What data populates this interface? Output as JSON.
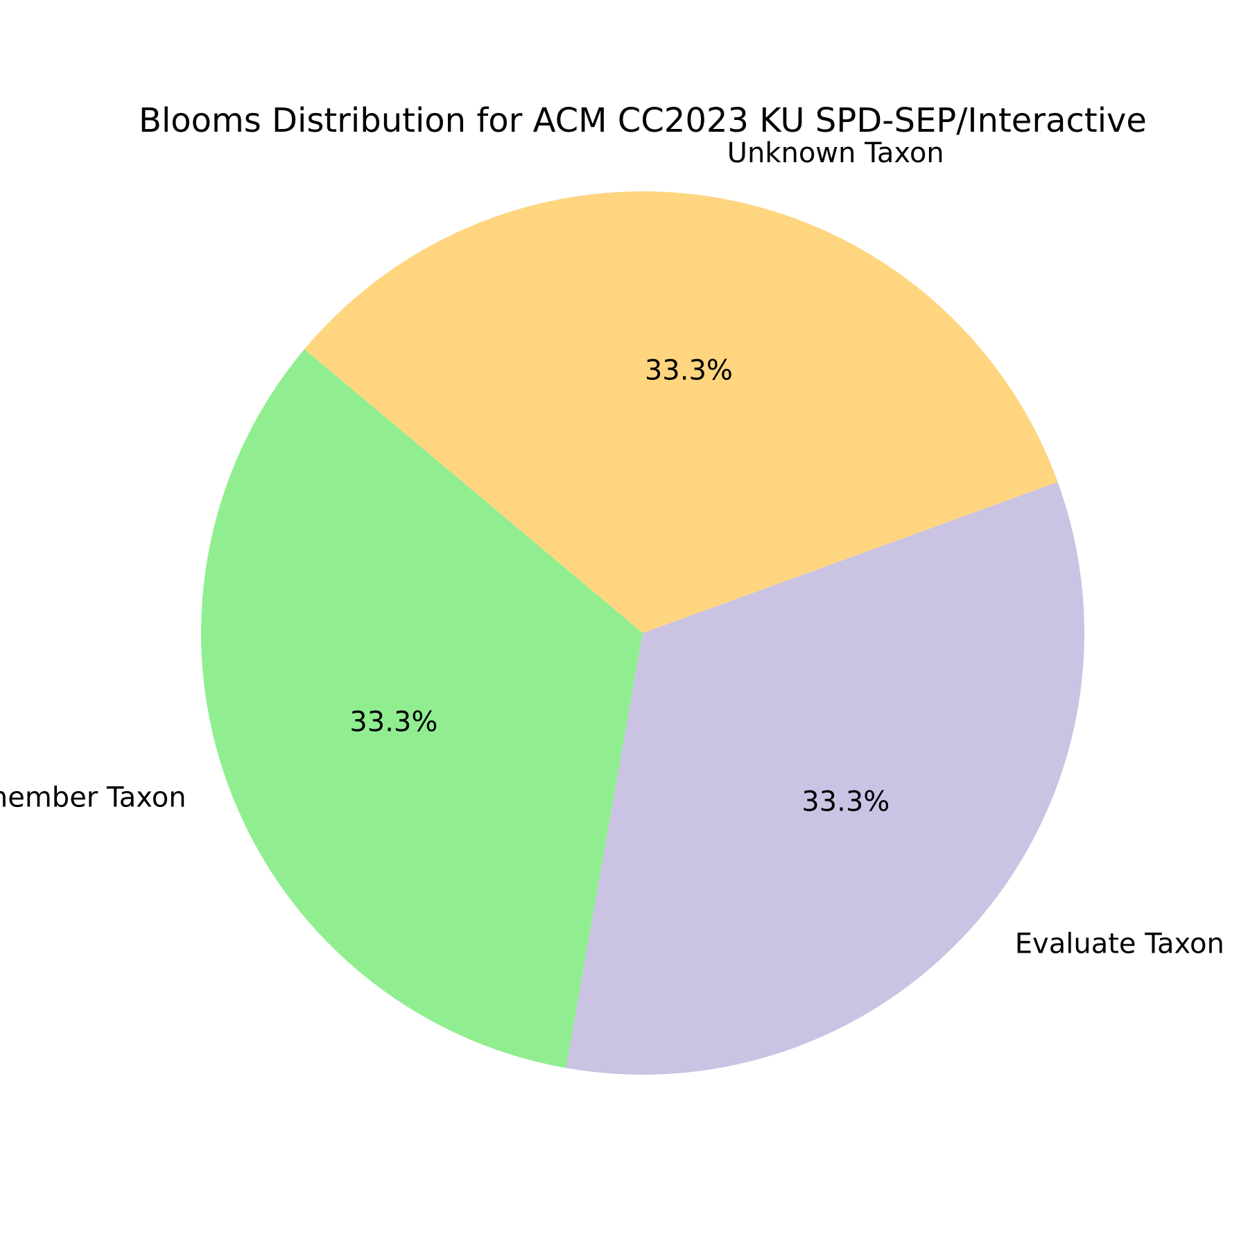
{
  "chart_data": {
    "type": "pie",
    "title": "Blooms Distribution for ACM CC2023 KU SPD-SEP/Interactive",
    "start_angle_deg": 140,
    "direction": "counterclockwise",
    "slices": [
      {
        "label": "Remember Taxon",
        "value": 33.3,
        "pct_label": "33.3%",
        "color": "#90ee90"
      },
      {
        "label": "Evaluate Taxon",
        "value": 33.3,
        "pct_label": "33.3%",
        "color": "#cbc3e3"
      },
      {
        "label": "Unknown Taxon",
        "value": 33.3,
        "pct_label": "33.3%",
        "color": "#ffd580"
      }
    ]
  }
}
